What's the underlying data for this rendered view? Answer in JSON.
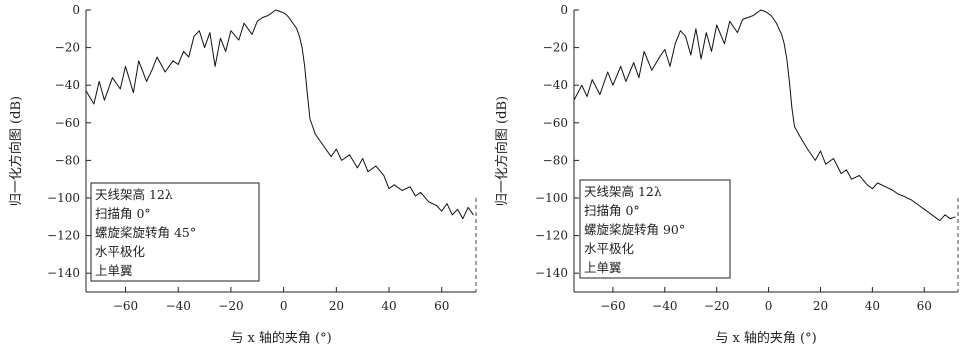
{
  "chart_data": [
    {
      "type": "line",
      "title": "",
      "xlabel": "与 x 轴的夹角 (°)",
      "ylabel": "归一化方向图 (dB)",
      "xlim": [
        -75,
        73
      ],
      "ylim": [
        -150,
        0
      ],
      "x_ticks": [
        -60,
        -40,
        -20,
        0,
        20,
        40,
        60
      ],
      "y_ticks": [
        0,
        -20,
        -40,
        -60,
        -80,
        -100,
        -120,
        -140
      ],
      "legend_position": "bottom-left",
      "legend": [
        "天线架高 12λ",
        "扫描角 0°",
        "螺旋桨旋转角 45°",
        "水平极化",
        "上单翼"
      ],
      "grid": false,
      "series": [
        {
          "x": [
            -75,
            -72,
            -70,
            -68,
            -65,
            -62,
            -60,
            -57,
            -55,
            -52,
            -50,
            -48,
            -45,
            -42,
            -40,
            -38,
            -36,
            -34,
            -32,
            -30,
            -28,
            -26,
            -24,
            -22,
            -20,
            -17,
            -15,
            -12,
            -10,
            -8,
            -6,
            -5,
            -4,
            -3,
            -2,
            -1,
            0,
            1,
            2,
            3,
            4,
            5,
            6,
            7,
            8,
            9,
            10,
            12,
            15,
            18,
            20,
            22,
            25,
            28,
            30,
            32,
            35,
            38,
            40,
            42,
            45,
            48,
            50,
            52,
            55,
            58,
            60,
            62,
            64,
            66,
            68,
            70,
            72
          ],
          "y": [
            -43,
            -50,
            -38,
            -48,
            -36,
            -42,
            -30,
            -44,
            -27,
            -38,
            -32,
            -25,
            -33,
            -27,
            -29,
            -22,
            -25,
            -14,
            -11,
            -20,
            -12,
            -30,
            -15,
            -22,
            -11,
            -16,
            -7,
            -13,
            -6,
            -4,
            -3,
            -2,
            -1,
            0,
            -0.5,
            -1,
            -1.5,
            -2.5,
            -4,
            -6,
            -8,
            -10,
            -14,
            -20,
            -30,
            -45,
            -58,
            -66,
            -72,
            -78,
            -74,
            -80,
            -77,
            -84,
            -79,
            -86,
            -83,
            -88,
            -95,
            -93,
            -96,
            -94,
            -99,
            -97,
            -102,
            -104,
            -107,
            -103,
            -109,
            -106,
            -111,
            -105,
            -109
          ]
        }
      ]
    },
    {
      "type": "line",
      "title": "",
      "xlabel": "与 x 轴的夹角 (°)",
      "ylabel": "归一化方向图 (dB)",
      "xlim": [
        -75,
        73
      ],
      "ylim": [
        -150,
        0
      ],
      "x_ticks": [
        -60,
        -40,
        -20,
        0,
        20,
        40,
        60
      ],
      "y_ticks": [
        0,
        -20,
        -40,
        -60,
        -80,
        -100,
        -120,
        -140
      ],
      "legend_position": "bottom-left",
      "legend": [
        "天线架高 12λ",
        "扫描角 0°",
        "螺旋桨旋转角 90°",
        "水平极化",
        "上单翼"
      ],
      "grid": false,
      "series": [
        {
          "x": [
            -75,
            -72,
            -70,
            -68,
            -65,
            -62,
            -60,
            -57,
            -55,
            -52,
            -50,
            -48,
            -45,
            -42,
            -40,
            -38,
            -36,
            -34,
            -32,
            -30,
            -28,
            -26,
            -24,
            -22,
            -20,
            -17,
            -15,
            -12,
            -10,
            -8,
            -6,
            -5,
            -4,
            -3,
            -2,
            -1,
            0,
            1,
            2,
            3,
            4,
            5,
            6,
            7,
            8,
            9,
            10,
            12,
            15,
            18,
            20,
            22,
            25,
            28,
            30,
            32,
            35,
            38,
            40,
            42,
            45,
            48,
            50,
            52,
            55,
            58,
            60,
            62,
            64,
            66,
            68,
            70,
            72
          ],
          "y": [
            -48,
            -40,
            -46,
            -37,
            -45,
            -33,
            -40,
            -30,
            -38,
            -28,
            -36,
            -22,
            -32,
            -25,
            -21,
            -30,
            -18,
            -11,
            -14,
            -24,
            -10,
            -26,
            -12,
            -22,
            -8,
            -18,
            -6,
            -12,
            -5,
            -4,
            -3,
            -2,
            -1,
            0,
            -0.5,
            -1,
            -2,
            -3,
            -5,
            -7,
            -10,
            -13,
            -18,
            -26,
            -38,
            -52,
            -62,
            -67,
            -74,
            -80,
            -75,
            -82,
            -79,
            -87,
            -85,
            -90,
            -88,
            -93,
            -95,
            -92,
            -94,
            -96,
            -98,
            -99,
            -101,
            -104,
            -106,
            -108,
            -110,
            -112,
            -109,
            -111,
            -110
          ]
        }
      ]
    }
  ]
}
